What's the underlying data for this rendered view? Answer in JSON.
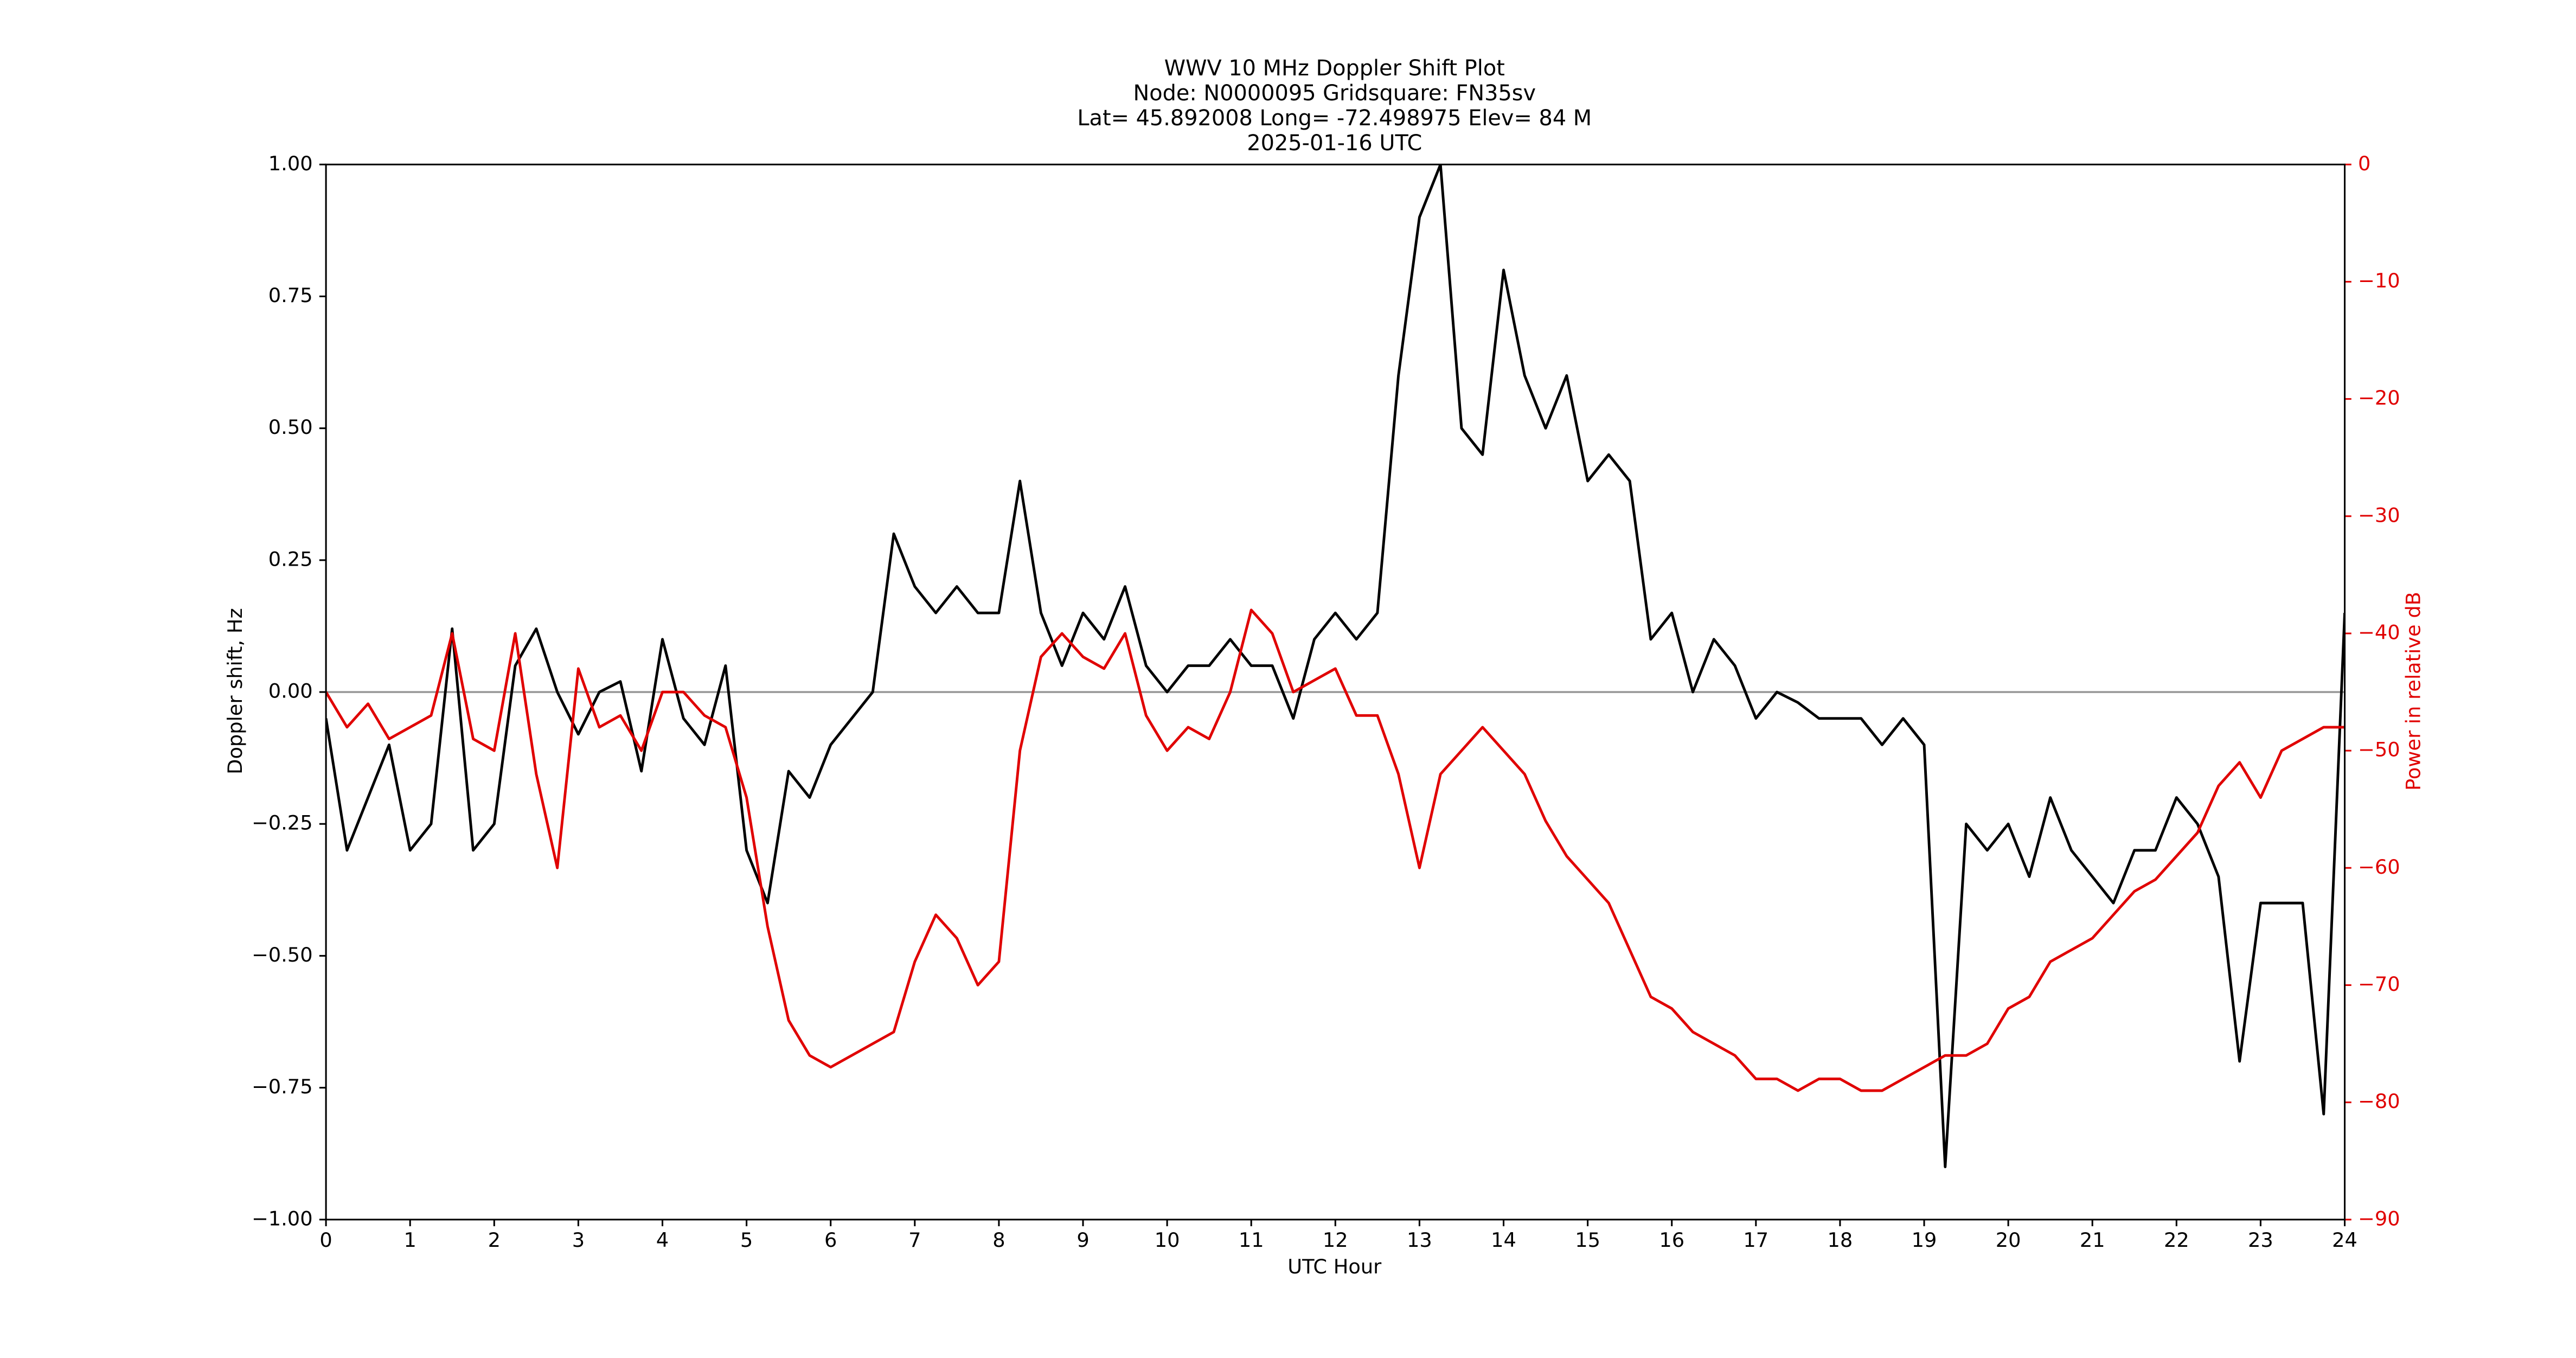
{
  "chart_data": {
    "type": "line",
    "title_lines": [
      "WWV 10 MHz Doppler Shift Plot",
      "Node:  N0000095     Gridsquare:  FN35sv",
      "Lat= 45.892008    Long= -72.498975    Elev= 84 M",
      "2025-01-16  UTC"
    ],
    "x_label": "UTC Hour",
    "y_label": "Doppler shift, Hz",
    "y2_label": "Power in relative dB",
    "x": [
      0,
      0.25,
      0.5,
      0.75,
      1,
      1.25,
      1.5,
      1.75,
      2,
      2.25,
      2.5,
      2.75,
      3,
      3.25,
      3.5,
      3.75,
      4,
      4.25,
      4.5,
      4.75,
      5,
      5.25,
      5.5,
      5.75,
      6,
      6.25,
      6.5,
      6.75,
      7,
      7.25,
      7.5,
      7.75,
      8,
      8.25,
      8.5,
      8.75,
      9,
      9.25,
      9.5,
      9.75,
      10,
      10.25,
      10.5,
      10.75,
      11,
      11.25,
      11.5,
      11.75,
      12,
      12.25,
      12.5,
      12.75,
      13,
      13.25,
      13.5,
      13.75,
      14,
      14.25,
      14.5,
      14.75,
      15,
      15.25,
      15.5,
      15.75,
      16,
      16.25,
      16.5,
      16.75,
      17,
      17.25,
      17.5,
      17.75,
      18,
      18.25,
      18.5,
      18.75,
      19,
      19.25,
      19.5,
      19.75,
      20,
      20.25,
      20.5,
      20.75,
      21,
      21.25,
      21.5,
      21.75,
      22,
      22.25,
      22.5,
      22.75,
      23,
      23.25,
      23.5,
      23.75,
      24
    ],
    "series": [
      {
        "color": "#000000",
        "axis": "y",
        "values": [
          -0.05,
          -0.3,
          -0.2,
          -0.1,
          -0.3,
          -0.25,
          0.12,
          -0.3,
          -0.25,
          0.05,
          0.12,
          0.0,
          -0.08,
          0.0,
          0.02,
          -0.15,
          0.1,
          -0.05,
          -0.1,
          0.05,
          -0.3,
          -0.4,
          -0.15,
          -0.2,
          -0.1,
          -0.05,
          0.0,
          0.3,
          0.2,
          0.15,
          0.2,
          0.15,
          0.15,
          0.4,
          0.15,
          0.05,
          0.15,
          0.1,
          0.2,
          0.05,
          0.0,
          0.05,
          0.05,
          0.1,
          0.05,
          0.05,
          -0.05,
          0.1,
          0.15,
          0.1,
          0.15,
          0.6,
          0.9,
          1.0,
          0.5,
          0.45,
          0.8,
          0.6,
          0.5,
          0.6,
          0.4,
          0.45,
          0.4,
          0.1,
          0.15,
          0.0,
          0.1,
          0.05,
          -0.05,
          0.0,
          -0.02,
          -0.05,
          -0.05,
          -0.05,
          -0.1,
          -0.05,
          -0.1,
          -0.9,
          -0.25,
          -0.3,
          -0.25,
          -0.35,
          -0.2,
          -0.3,
          -0.35,
          -0.4,
          -0.3,
          -0.3,
          -0.2,
          -0.25,
          -0.35,
          -0.7,
          -0.4,
          -0.4,
          -0.4,
          -0.8,
          0.15
        ]
      },
      {
        "color": "#e00000",
        "axis": "y2",
        "values": [
          -45,
          -48,
          -46,
          -49,
          -48,
          -47,
          -40,
          -49,
          -50,
          -40,
          -52,
          -60,
          -43,
          -48,
          -47,
          -50,
          -45,
          -45,
          -47,
          -48,
          -54,
          -65,
          -73,
          -76,
          -77,
          -76,
          -75,
          -74,
          -68,
          -64,
          -66,
          -70,
          -68,
          -50,
          -42,
          -40,
          -42,
          -43,
          -40,
          -47,
          -50,
          -48,
          -49,
          -45,
          -38,
          -40,
          -45,
          -44,
          -43,
          -47,
          -47,
          -52,
          -60,
          -52,
          -50,
          -48,
          -50,
          -52,
          -56,
          -59,
          -61,
          -63,
          -67,
          -71,
          -72,
          -74,
          -75,
          -76,
          -78,
          -78,
          -79,
          -78,
          -78,
          -79,
          -79,
          -78,
          -77,
          -76,
          -76,
          -75,
          -72,
          -71,
          -68,
          -67,
          -66,
          -64,
          -62,
          -61,
          -59,
          -57,
          -53,
          -51,
          -54,
          -50,
          -49,
          -48,
          -48
        ]
      }
    ],
    "xlim": [
      0,
      24
    ],
    "xticks": [
      0,
      1,
      2,
      3,
      4,
      5,
      6,
      7,
      8,
      9,
      10,
      11,
      12,
      13,
      14,
      15,
      16,
      17,
      18,
      19,
      20,
      21,
      22,
      23,
      24
    ],
    "ylim": [
      -1,
      1
    ],
    "yticks": [
      {
        "value": -1,
        "label": "−1.00"
      },
      {
        "value": -0.75,
        "label": "−0.75"
      },
      {
        "value": -0.5,
        "label": "−0.50"
      },
      {
        "value": -0.25,
        "label": "−0.25"
      },
      {
        "value": 0,
        "label": "0.00"
      },
      {
        "value": 0.25,
        "label": "0.25"
      },
      {
        "value": 0.5,
        "label": "0.50"
      },
      {
        "value": 0.75,
        "label": "0.75"
      },
      {
        "value": 1,
        "label": "1.00"
      }
    ],
    "y2lim": [
      -90,
      0
    ],
    "y2ticks": [
      {
        "value": -90,
        "label": "−90"
      },
      {
        "value": -80,
        "label": "−80"
      },
      {
        "value": -70,
        "label": "−70"
      },
      {
        "value": -60,
        "label": "−60"
      },
      {
        "value": -50,
        "label": "−50"
      },
      {
        "value": -40,
        "label": "−40"
      },
      {
        "value": -30,
        "label": "−30"
      },
      {
        "value": -20,
        "label": "−20"
      },
      {
        "value": -10,
        "label": "−10"
      },
      0
    ],
    "y2_color": "#e00000",
    "hline": 0,
    "hline_color": "#999999"
  }
}
